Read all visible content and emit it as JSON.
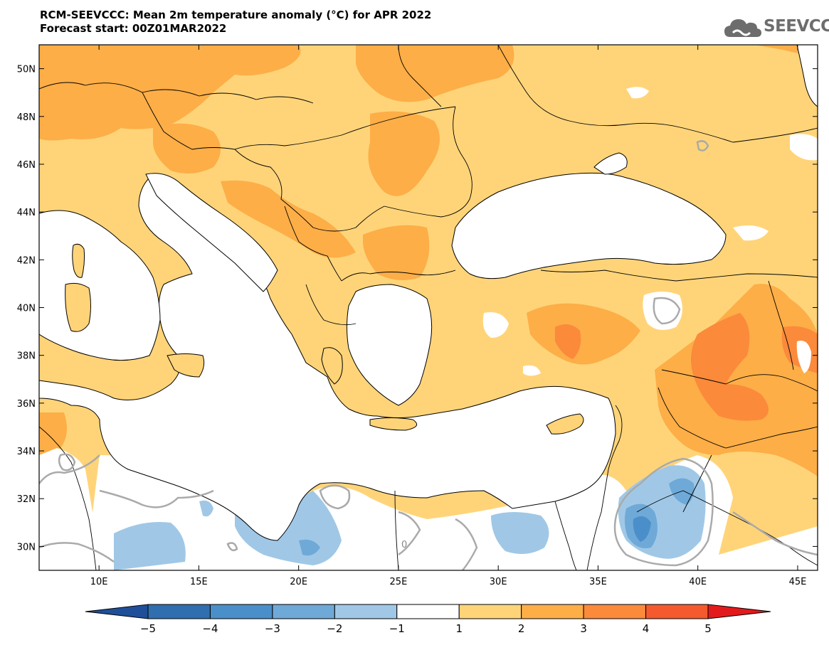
{
  "title": {
    "line1": "RCM-SEEVCCC: Mean 2m temperature anomaly (°C) for APR 2022",
    "line2": "Forecast start: 00Z01MAR2022"
  },
  "logo": {
    "text": "SEEVCCC",
    "icon": "cloud-icon"
  },
  "map": {
    "lon_range": [
      7,
      46
    ],
    "lat_range": [
      29,
      51
    ],
    "lat_ticks": [
      "50N",
      "48N",
      "46N",
      "44N",
      "42N",
      "40N",
      "38N",
      "36N",
      "34N",
      "32N",
      "30N"
    ],
    "lon_ticks": [
      "10E",
      "15E",
      "20E",
      "25E",
      "30E",
      "35E",
      "40E",
      "45E"
    ],
    "contour_label": "0"
  },
  "colorbar": {
    "labels": [
      "−5",
      "−4",
      "−3",
      "−2",
      "−1",
      "1",
      "2",
      "3",
      "4",
      "5"
    ],
    "colors": [
      "#1f4f99",
      "#2f6fb0",
      "#4a8fc9",
      "#6fa9d8",
      "#a0c8e6",
      "#ffffff",
      "#ffd479",
      "#fdae47",
      "#fb8a3b",
      "#f45a2e",
      "#e31a1c"
    ]
  }
}
